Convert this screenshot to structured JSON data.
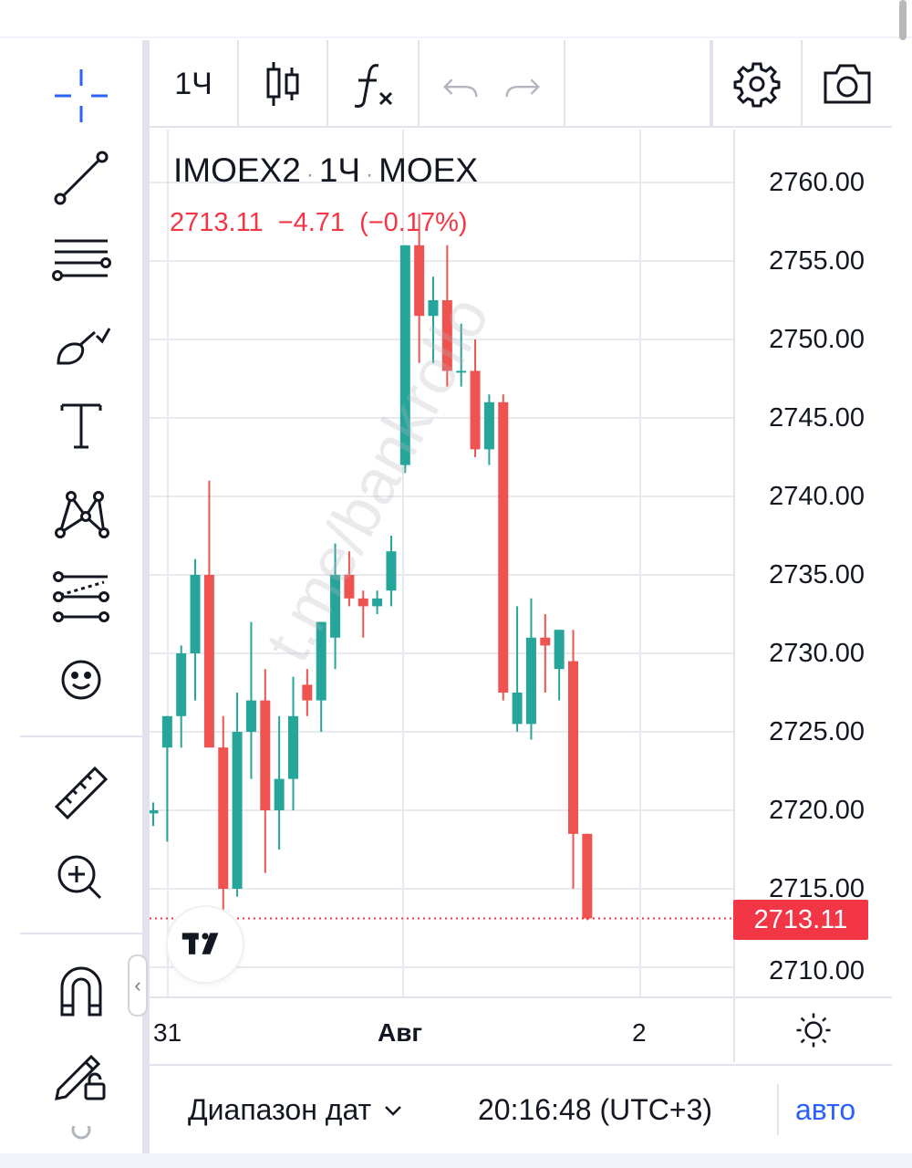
{
  "toolbar": {
    "interval": "1Ч",
    "tools": [
      "crosshair-icon",
      "trend-line-icon",
      "fib-retracement-icon",
      "brush-icon",
      "text-icon",
      "pattern-icon",
      "forecast-icon",
      "emoji-icon",
      "ruler-icon",
      "zoom-in-icon",
      "magnet-icon",
      "lock-drawings-icon"
    ]
  },
  "legend": {
    "symbol": "IMOEX2",
    "interval": "1Ч",
    "exchange": "MOEX",
    "last": "2713.11",
    "change": "−4.71",
    "change_pct": "(−0.17%)"
  },
  "watermark": "t.me/bankrollo",
  "price_axis": {
    "labels": [
      "2760.00",
      "2755.00",
      "2750.00",
      "2745.00",
      "2740.00",
      "2735.00",
      "2730.00",
      "2725.00",
      "2720.00",
      "2715.00",
      "2710.00"
    ],
    "current_price": "2713.11"
  },
  "time_axis": {
    "labels": [
      "31",
      "Авг",
      "2"
    ]
  },
  "bottom_bar": {
    "range_label": "Диапазон дат",
    "clock": "20:16:48 (UTC+3)",
    "auto_label": "авто"
  },
  "colors": {
    "up": "#26a69a",
    "down": "#ef5350",
    "accent": "#2962ff"
  },
  "chart_data": {
    "type": "candlestick",
    "ylim": [
      2708.5,
      2763.5
    ],
    "candles": [
      {
        "o": 2719.8,
        "h": 2720.5,
        "l": 2719.0,
        "c": 2720.0
      },
      {
        "o": 2724.0,
        "h": 2726.0,
        "l": 2718.0,
        "c": 2726.0
      },
      {
        "o": 2726.0,
        "h": 2730.5,
        "l": 2724.0,
        "c": 2730.0
      },
      {
        "o": 2730.0,
        "h": 2736.0,
        "l": 2727.0,
        "c": 2735.0
      },
      {
        "o": 2735.0,
        "h": 2741.0,
        "l": 2724.0,
        "c": 2724.0
      },
      {
        "o": 2724.0,
        "h": 2726.0,
        "l": 2713.0,
        "c": 2715.0
      },
      {
        "o": 2715.0,
        "h": 2727.5,
        "l": 2714.5,
        "c": 2725.0
      },
      {
        "o": 2725.0,
        "h": 2732.0,
        "l": 2722.0,
        "c": 2727.0
      },
      {
        "o": 2727.0,
        "h": 2729.0,
        "l": 2716.0,
        "c": 2720.0
      },
      {
        "o": 2720.0,
        "h": 2726.0,
        "l": 2717.5,
        "c": 2722.0
      },
      {
        "o": 2722.0,
        "h": 2728.5,
        "l": 2720.0,
        "c": 2726.0
      },
      {
        "o": 2728.0,
        "h": 2729.0,
        "l": 2726.0,
        "c": 2727.0
      },
      {
        "o": 2727.0,
        "h": 2732.0,
        "l": 2725.0,
        "c": 2732.0
      },
      {
        "o": 2731.0,
        "h": 2737.0,
        "l": 2729.0,
        "c": 2735.0
      },
      {
        "o": 2735.0,
        "h": 2736.5,
        "l": 2733.0,
        "c": 2733.5
      },
      {
        "o": 2733.5,
        "h": 2734.0,
        "l": 2731.0,
        "c": 2733.0
      },
      {
        "o": 2733.0,
        "h": 2734.0,
        "l": 2732.5,
        "c": 2733.5
      },
      {
        "o": 2734.0,
        "h": 2737.5,
        "l": 2733.0,
        "c": 2736.5
      },
      {
        "o": 2742.0,
        "h": 2756.0,
        "l": 2741.5,
        "c": 2756.0
      },
      {
        "o": 2756.0,
        "h": 2758.0,
        "l": 2748.5,
        "c": 2751.5
      },
      {
        "o": 2751.5,
        "h": 2754.0,
        "l": 2748.5,
        "c": 2752.5
      },
      {
        "o": 2752.5,
        "h": 2756.0,
        "l": 2747.0,
        "c": 2748.0
      },
      {
        "o": 2748.0,
        "h": 2751.0,
        "l": 2747.0,
        "c": 2748.0
      },
      {
        "o": 2748.0,
        "h": 2750.0,
        "l": 2742.5,
        "c": 2743.0
      },
      {
        "o": 2743.0,
        "h": 2746.5,
        "l": 2742.0,
        "c": 2746.0
      },
      {
        "o": 2746.0,
        "h": 2746.5,
        "l": 2727.0,
        "c": 2727.5
      },
      {
        "o": 2725.5,
        "h": 2733.0,
        "l": 2725.0,
        "c": 2727.5
      },
      {
        "o": 2725.5,
        "h": 2733.5,
        "l": 2724.5,
        "c": 2731.0
      },
      {
        "o": 2731.0,
        "h": 2732.5,
        "l": 2727.5,
        "c": 2730.5
      },
      {
        "o": 2729.0,
        "h": 2731.5,
        "l": 2727.0,
        "c": 2731.5
      },
      {
        "o": 2729.5,
        "h": 2731.5,
        "l": 2715.0,
        "c": 2718.5
      },
      {
        "o": 2718.5,
        "h": 2718.5,
        "l": 2713.0,
        "c": 2713.11
      }
    ]
  }
}
